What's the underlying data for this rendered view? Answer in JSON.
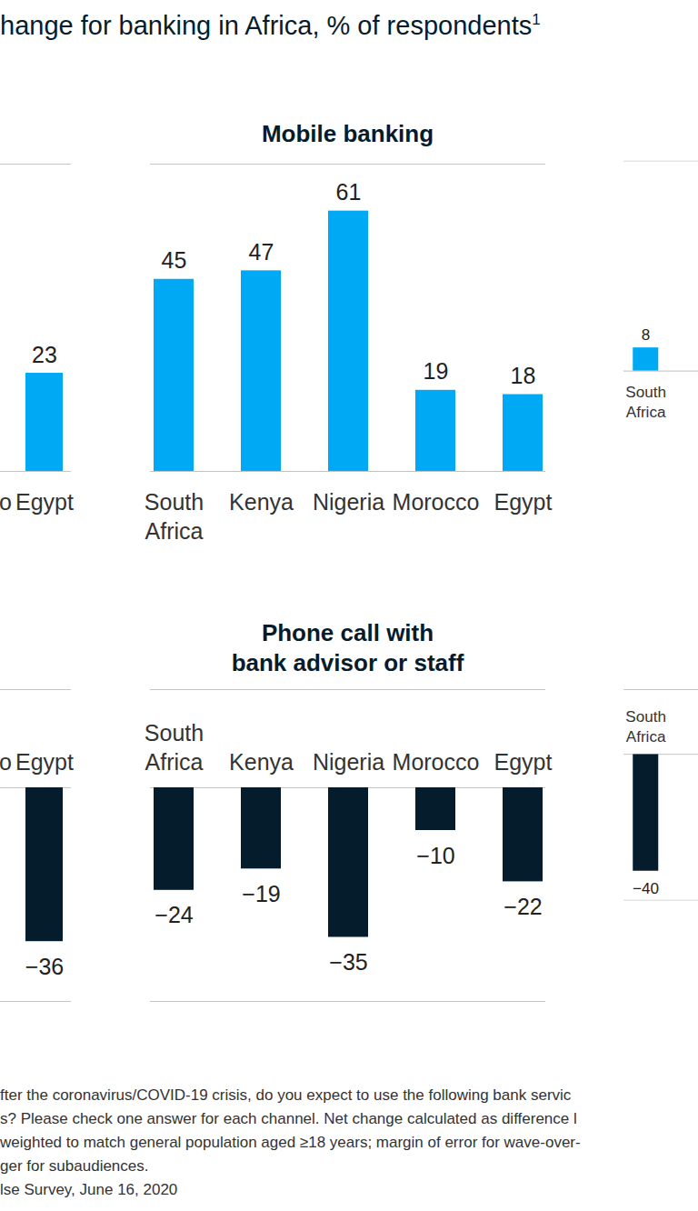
{
  "title": "hange for banking in Africa, % of respondents",
  "title_superscript": "1",
  "chart_data": [
    {
      "type": "bar",
      "categories": [
        "o",
        "Egypt"
      ],
      "values": [
        null,
        23
      ],
      "color": "#00a9f4",
      "ylim": [
        0,
        72
      ],
      "data_labels": true,
      "tick_labels": "x"
    },
    {
      "type": "bar",
      "title": "Mobile banking",
      "categories": [
        "South\nAfrica",
        "Kenya",
        "Nigeria",
        "Morocco",
        "Egypt"
      ],
      "values": [
        45,
        47,
        61,
        19,
        18
      ],
      "color": "#00a9f4",
      "ylim": [
        0,
        72
      ],
      "data_labels": true,
      "tick_labels": "x"
    },
    {
      "type": "bar",
      "categories": [
        "South\nAfrica"
      ],
      "values": [
        8
      ],
      "color": "#00a9f4",
      "ylim": [
        0,
        72
      ],
      "data_labels": true,
      "tick_labels": "x"
    },
    {
      "type": "bar",
      "categories": [
        "o",
        "Egypt"
      ],
      "values": [
        null,
        -36
      ],
      "value_labels": [
        null,
        "−36"
      ],
      "color": "#051c2c",
      "ylim": [
        -50,
        0
      ],
      "data_labels": true,
      "tick_labels": "x"
    },
    {
      "type": "bar",
      "title": "Phone call with\nbank advisor or staff",
      "categories": [
        "South\nAfrica",
        "Kenya",
        "Nigeria",
        "Morocco",
        "Egypt"
      ],
      "values": [
        -24,
        -19,
        -35,
        -10,
        -22
      ],
      "value_labels": [
        "−24",
        "−19",
        "−35",
        "−10",
        "−22"
      ],
      "color": "#051c2c",
      "ylim": [
        -50,
        0
      ],
      "data_labels": true,
      "tick_labels": "x"
    },
    {
      "type": "bar",
      "categories": [
        "South\nAfrica"
      ],
      "values": [
        -40
      ],
      "value_labels": [
        "−40"
      ],
      "color": "#051c2c",
      "ylim": [
        -50,
        0
      ],
      "data_labels": true,
      "tick_labels": "x"
    }
  ],
  "notes": [
    "fter the coronavirus/COVID-19 crisis, do you expect to use the following bank servic",
    "s? Please check one answer for each channel. Net change calculated as difference l",
    "weighted to match general population aged ≥18 years; margin of error for wave-over-",
    "ger for subaudiences.",
    "lse Survey, June 16, 2020"
  ]
}
